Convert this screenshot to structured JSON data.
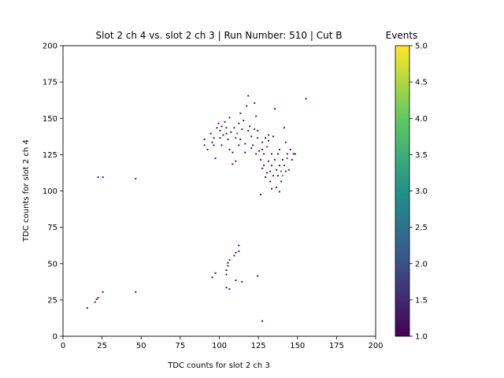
{
  "chart_data": {
    "type": "heatmap",
    "title": "Slot 2 ch 4 vs. slot 2 ch 3 | Run Number: 510 | Cut B",
    "colorbar_label": "Events",
    "xlabel": "TDC counts for slot 2 ch 3",
    "ylabel": "TDC counts for slot 2 ch 4",
    "xlim": [
      0,
      200
    ],
    "ylim": [
      0,
      200
    ],
    "x_ticks": [
      "0",
      "25",
      "50",
      "75",
      "100",
      "125",
      "150",
      "175",
      "200"
    ],
    "y_ticks": [
      "0",
      "25",
      "50",
      "75",
      "100",
      "125",
      "150",
      "175",
      "200"
    ],
    "colorbar_range": [
      1.0,
      5.0
    ],
    "colorbar_ticks": [
      "1.0",
      "1.5",
      "2.0",
      "2.5",
      "3.0",
      "3.5",
      "4.0",
      "4.5",
      "5.0"
    ],
    "colormap": "viridis",
    "colormap_stops": [
      "#440154",
      "#3b528b",
      "#21918c",
      "#5ec962",
      "#fde725"
    ],
    "bin_width": 1,
    "bins": [
      [
        15,
        19,
        1
      ],
      [
        20,
        23,
        1
      ],
      [
        21,
        25,
        1
      ],
      [
        22,
        26,
        1
      ],
      [
        25,
        30,
        1
      ],
      [
        46,
        30,
        1
      ],
      [
        22,
        109,
        1
      ],
      [
        25,
        109,
        1
      ],
      [
        46,
        108,
        1
      ],
      [
        95,
        40,
        1
      ],
      [
        97,
        43,
        1
      ],
      [
        104,
        42,
        1
      ],
      [
        104,
        45,
        1
      ],
      [
        105,
        48,
        1
      ],
      [
        106,
        52,
        1
      ],
      [
        105,
        50,
        1
      ],
      [
        104,
        33,
        1
      ],
      [
        106,
        32,
        1
      ],
      [
        110,
        38,
        1
      ],
      [
        109,
        55,
        1
      ],
      [
        110,
        57,
        1
      ],
      [
        112,
        62,
        1
      ],
      [
        112,
        58,
        1
      ],
      [
        114,
        37,
        1
      ],
      [
        124,
        41,
        1
      ],
      [
        127,
        10,
        1
      ],
      [
        90,
        135,
        1
      ],
      [
        90,
        131,
        1
      ],
      [
        92,
        128,
        1
      ],
      [
        94,
        139,
        1
      ],
      [
        95,
        133,
        1
      ],
      [
        96,
        131,
        1
      ],
      [
        97,
        122,
        1
      ],
      [
        98,
        143,
        1
      ],
      [
        99,
        146,
        1
      ],
      [
        100,
        141,
        1
      ],
      [
        101,
        144,
        1
      ],
      [
        102,
        138,
        1
      ],
      [
        103,
        147,
        1
      ],
      [
        104,
        139,
        1
      ],
      [
        104,
        143,
        1
      ],
      [
        105,
        135,
        1
      ],
      [
        106,
        150,
        1
      ],
      [
        106,
        128,
        1
      ],
      [
        107,
        140,
        1
      ],
      [
        108,
        126,
        1
      ],
      [
        108,
        118,
        1
      ],
      [
        109,
        143,
        1
      ],
      [
        110,
        136,
        1
      ],
      [
        110,
        120,
        1
      ],
      [
        111,
        139,
        2
      ],
      [
        112,
        146,
        1
      ],
      [
        113,
        153,
        1
      ],
      [
        113,
        135,
        1
      ],
      [
        114,
        142,
        1
      ],
      [
        115,
        148,
        1
      ],
      [
        116,
        132,
        1
      ],
      [
        117,
        158,
        1
      ],
      [
        118,
        141,
        1
      ],
      [
        118,
        165,
        1
      ],
      [
        119,
        144,
        1
      ],
      [
        120,
        129,
        1
      ],
      [
        120,
        137,
        1
      ],
      [
        121,
        131,
        1
      ],
      [
        122,
        160,
        1
      ],
      [
        123,
        151,
        1
      ],
      [
        123,
        125,
        1
      ],
      [
        124,
        141,
        1
      ],
      [
        124,
        136,
        1
      ],
      [
        125,
        127,
        1
      ],
      [
        126,
        121,
        1
      ],
      [
        127,
        133,
        1
      ],
      [
        127,
        128,
        1
      ],
      [
        128,
        125,
        1
      ],
      [
        128,
        117,
        1
      ],
      [
        129,
        136,
        1
      ],
      [
        130,
        130,
        2
      ],
      [
        130,
        112,
        1
      ],
      [
        131,
        134,
        1
      ],
      [
        131,
        120,
        1
      ],
      [
        132,
        113,
        1
      ],
      [
        132,
        106,
        1
      ],
      [
        133,
        117,
        1
      ],
      [
        133,
        125,
        1
      ],
      [
        134,
        110,
        1
      ],
      [
        134,
        137,
        1
      ],
      [
        135,
        156,
        1
      ],
      [
        135,
        121,
        1
      ],
      [
        136,
        114,
        1
      ],
      [
        136,
        102,
        1
      ],
      [
        137,
        110,
        1
      ],
      [
        137,
        125,
        1
      ],
      [
        138,
        117,
        1
      ],
      [
        138,
        128,
        1
      ],
      [
        139,
        113,
        2
      ],
      [
        139,
        106,
        1
      ],
      [
        140,
        121,
        1
      ],
      [
        140,
        110,
        3
      ],
      [
        141,
        143,
        1
      ],
      [
        141,
        117,
        1
      ],
      [
        142,
        113,
        1
      ],
      [
        142,
        133,
        1
      ],
      [
        143,
        122,
        2
      ],
      [
        143,
        125,
        1
      ],
      [
        144,
        114,
        1
      ],
      [
        145,
        128,
        1
      ],
      [
        146,
        121,
        1
      ],
      [
        147,
        125,
        1
      ],
      [
        148,
        125,
        1
      ],
      [
        126,
        97,
        1
      ],
      [
        129,
        109,
        1
      ],
      [
        133,
        101,
        1
      ],
      [
        138,
        99,
        1
      ],
      [
        155,
        163,
        1
      ],
      [
        127,
        115,
        1
      ],
      [
        131,
        138,
        1
      ],
      [
        122,
        142,
        1
      ],
      [
        116,
        126,
        1
      ],
      [
        112,
        131,
        1
      ],
      [
        101,
        131,
        1
      ],
      [
        96,
        136,
        1
      ],
      [
        100,
        136,
        1
      ]
    ]
  }
}
